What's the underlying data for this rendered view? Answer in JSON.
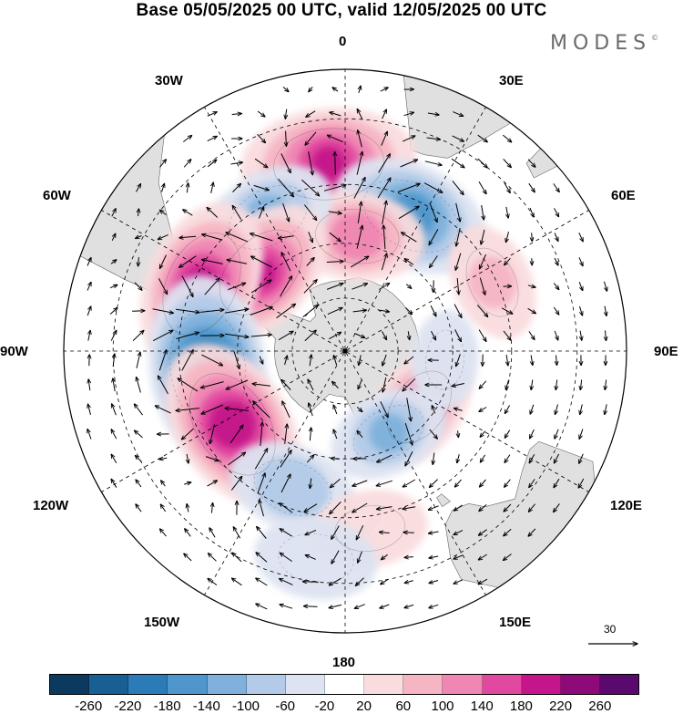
{
  "title": "Base 05/05/2025 00 UTC, valid 12/05/2025 00 UTC",
  "brand": "MODES",
  "brand_mark": "©",
  "longitude_labels": {
    "lon_0": "0",
    "lon_30e": "30E",
    "lon_60e": "60E",
    "lon_90e": "90E",
    "lon_120e": "120E",
    "lon_150e": "150E",
    "lon_180": "180",
    "lon_150w": "150W",
    "lon_120w": "120W",
    "lon_90w": "90W",
    "lon_60w": "60W",
    "lon_30w": "30W"
  },
  "reference_vector": {
    "label": "30"
  },
  "colorbar": {
    "ticks": [
      "-260",
      "-220",
      "-180",
      "-140",
      "-100",
      "-60",
      "-20",
      "20",
      "60",
      "100",
      "140",
      "180",
      "220",
      "260"
    ],
    "colors": [
      "#0c3a5e",
      "#1a5f94",
      "#2b7bb8",
      "#4e96cc",
      "#7fb1dc",
      "#b3cbe8",
      "#dde3f1",
      "#ffffff",
      "#f9dcde",
      "#f6b5c3",
      "#ef86b3",
      "#e1489f",
      "#c4168a",
      "#8e0a78",
      "#5a0a6e"
    ]
  },
  "map_style": {
    "projection": "south polar stereographic",
    "land_color": "#e0e0e0",
    "graticule": "dashed",
    "vector_color": "#000000"
  },
  "anomaly_centers": [
    {
      "lon": -5,
      "lat": -40,
      "value": 185,
      "kind": "positive"
    },
    {
      "lon": 26,
      "lat": -49,
      "value": -165,
      "kind": "negative"
    },
    {
      "lon": 6,
      "lat": -58,
      "value": 125,
      "kind": "positive"
    },
    {
      "lon": -30,
      "lat": -48,
      "value": -110,
      "kind": "negative"
    },
    {
      "lon": -47,
      "lat": -58,
      "value": 180,
      "kind": "positive"
    },
    {
      "lon": -65,
      "lat": -47,
      "value": 190,
      "kind": "positive"
    },
    {
      "lon": -97,
      "lat": -52,
      "value": -230,
      "kind": "negative"
    },
    {
      "lon": -123,
      "lat": -53,
      "value": 215,
      "kind": "positive"
    },
    {
      "lon": -159,
      "lat": -50,
      "value": -95,
      "kind": "negative"
    },
    {
      "lon": 127,
      "lat": -64,
      "value": 125,
      "kind": "positive"
    },
    {
      "lon": 152,
      "lat": -64,
      "value": -105,
      "kind": "negative"
    },
    {
      "lon": 65,
      "lat": -46,
      "value": 60,
      "kind": "positive"
    },
    {
      "lon": 95,
      "lat": -62,
      "value": -45,
      "kind": "negative"
    },
    {
      "lon": 172,
      "lat": -42,
      "value": 45,
      "kind": "positive"
    },
    {
      "lon": -172,
      "lat": -35,
      "value": -50,
      "kind": "negative"
    }
  ]
}
